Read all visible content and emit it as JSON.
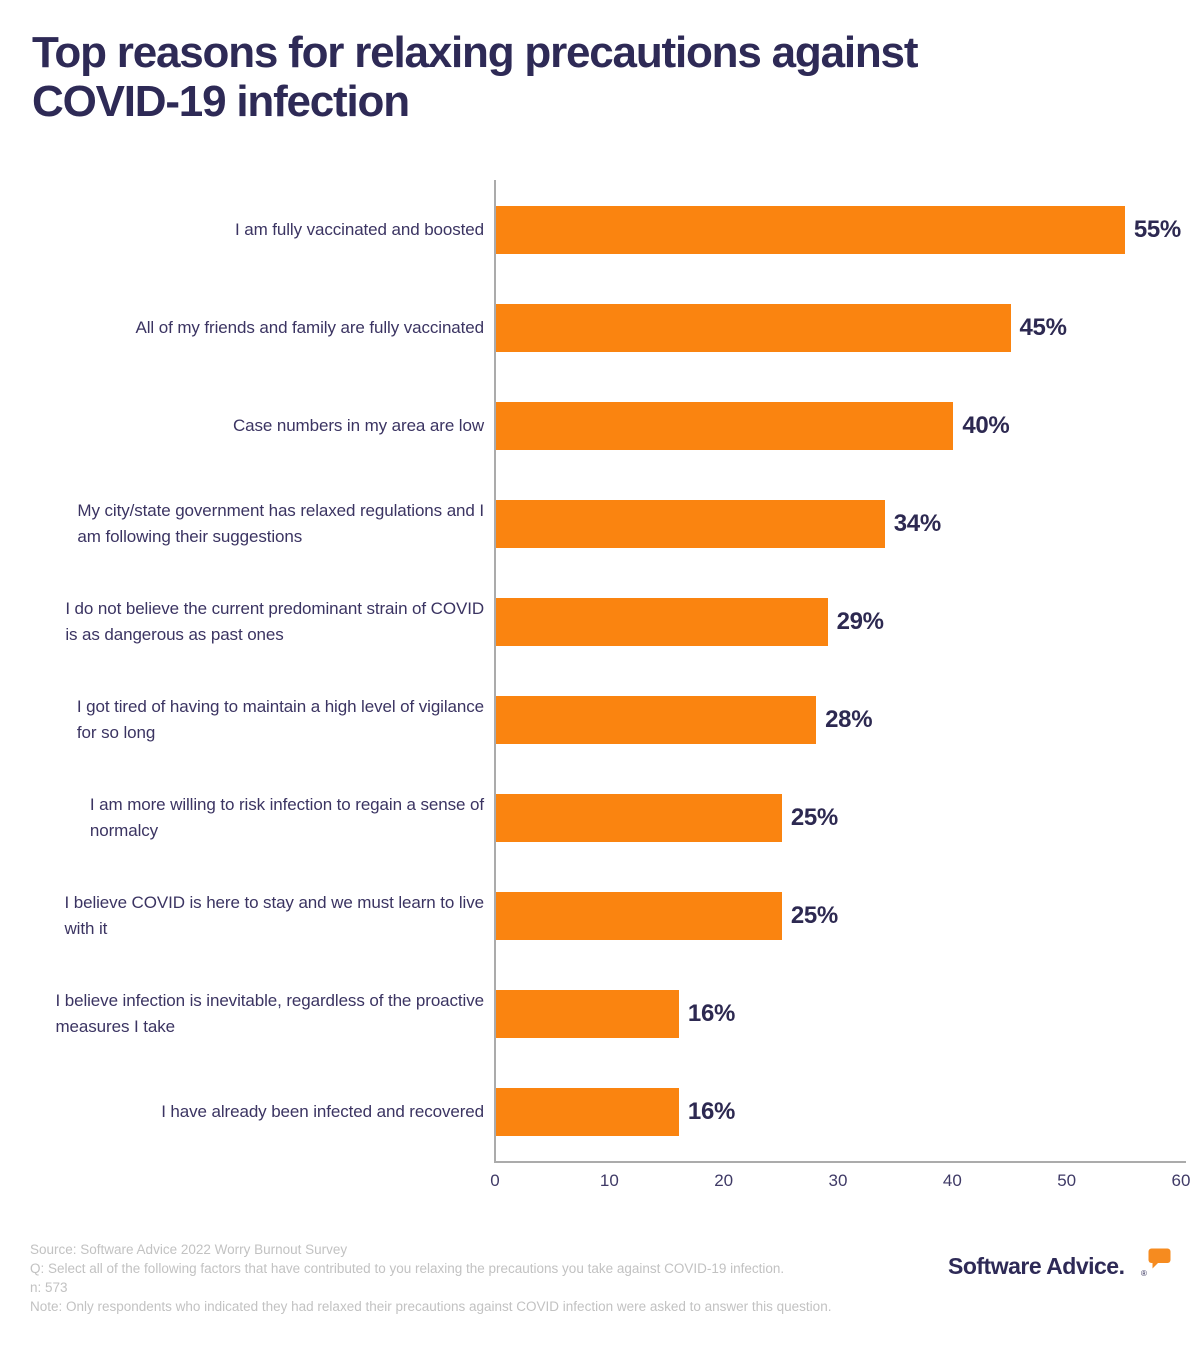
{
  "title": {
    "text": "Top reasons for relaxing precautions against COVID-19 infection",
    "lines": [
      "Top reasons for relaxing precautions against",
      "COVID-19 infection"
    ]
  },
  "chart_data": {
    "type": "bar",
    "orientation": "horizontal",
    "title": "Top reasons for relaxing precautions against COVID-19 infection",
    "categories": [
      "I am fully vaccinated and boosted",
      "All of my friends and family are fully vaccinated",
      "Case numbers in my area are low",
      "My city/state government has relaxed regulations and I am following their suggestions",
      "I do not believe the current predominant strain of COVID is as dangerous as past ones",
      "I got tired of having to maintain a high level of vigilance for so long",
      "I am more willing to risk infection to regain a sense of normalcy",
      "I believe COVID is here to stay and we must learn to live with it",
      "I believe infection is inevitable, regardless of the proactive measures I take",
      "I have already been infected and recovered"
    ],
    "category_lines": [
      [
        "I am fully vaccinated and boosted"
      ],
      [
        "All of my friends and family are fully vaccinated"
      ],
      [
        "Case numbers in my area are low"
      ],
      [
        "My city/state government has relaxed regulations and I",
        "am following their suggestions"
      ],
      [
        "I do not believe the current predominant strain of COVID",
        "is as dangerous as past ones"
      ],
      [
        "I got tired of having to maintain a high level of vigilance",
        "for so long"
      ],
      [
        "I am more willing to risk infection to regain a sense of",
        "normalcy"
      ],
      [
        "I believe COVID is here to stay and we must learn to live",
        "with it"
      ],
      [
        "I believe infection is inevitable, regardless of the proactive",
        "measures I take"
      ],
      [
        "I have already been infected and recovered"
      ]
    ],
    "values": [
      55,
      45,
      40,
      34,
      29,
      28,
      25,
      25,
      16,
      16
    ],
    "value_labels": [
      "55%",
      "45%",
      "40%",
      "34%",
      "29%",
      "28%",
      "25%",
      "25%",
      "16%",
      "16%"
    ],
    "xlabel": "",
    "ylabel": "",
    "xlim": [
      0,
      60
    ],
    "x_ticks": [
      "0",
      "10",
      "20",
      "30",
      "40",
      "50",
      "60"
    ],
    "grid": false,
    "legend": "none",
    "bar_color": "#fa8410",
    "value_label_color": "#2d2951",
    "category_label_color": "#3b3462",
    "axis_color": "#ababab"
  },
  "footer": {
    "source": "Source: Software Advice 2022 Worry Burnout Survey",
    "question": "Q: Select all of the following factors that have contributed to you relaxing the precautions you take against COVID-19 infection.",
    "n": "n: 573",
    "note": "Note: Only respondents who indicated they had relaxed their precautions against COVID infection were asked to answer this question.",
    "text_color": "#c2c2c2"
  },
  "brand": {
    "logo_text": "Software Advice.",
    "registered": "®",
    "logo_color": "#2e2a56",
    "bubble_color": "#f68b1f"
  }
}
